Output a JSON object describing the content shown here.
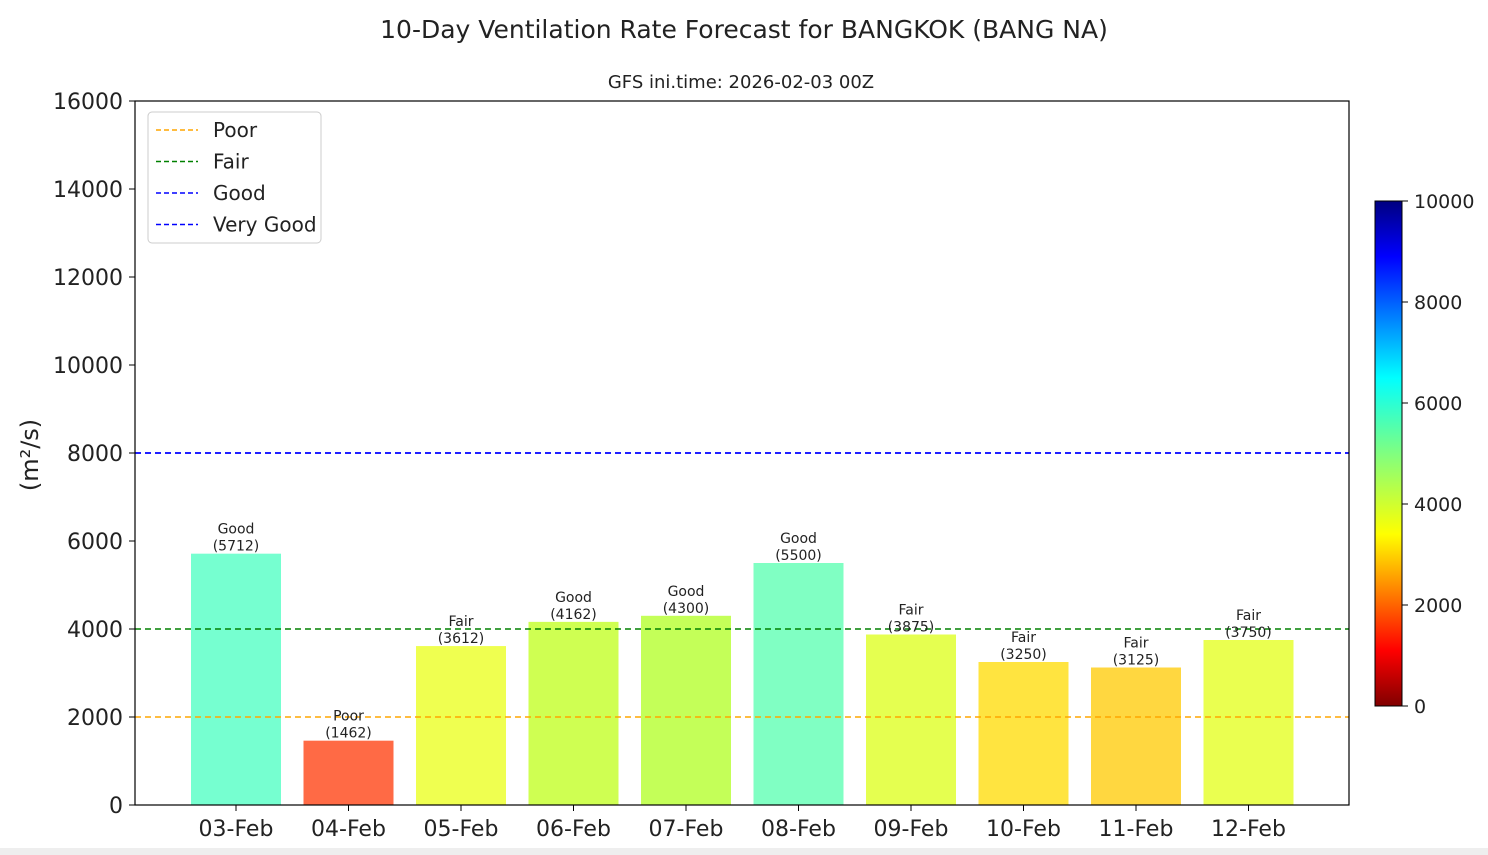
{
  "chart_data": {
    "type": "bar",
    "title": "10-Day Ventilation Rate Forecast for BANGKOK (BANG NA)",
    "subtitle": "GFS ini.time: 2026-02-03 00Z",
    "ylabel": "(m²/s)",
    "xlabel": "",
    "ylim": [
      0,
      16000
    ],
    "yticks": [
      "0",
      "2000",
      "4000",
      "6000",
      "8000",
      "10000",
      "12000",
      "14000",
      "16000"
    ],
    "categories": [
      "03-Feb",
      "04-Feb",
      "05-Feb",
      "06-Feb",
      "07-Feb",
      "08-Feb",
      "09-Feb",
      "10-Feb",
      "11-Feb",
      "12-Feb"
    ],
    "values": [
      5712,
      1462,
      3612,
      4162,
      4300,
      5500,
      3875,
      3250,
      3125,
      3750
    ],
    "bar_labels": [
      "Good",
      "Poor",
      "Fair",
      "Good",
      "Good",
      "Good",
      "Fair",
      "Fair",
      "Fair",
      "Fair"
    ],
    "value_labels": [
      "(5712)",
      "(1462)",
      "(3612)",
      "(4162)",
      "(4300)",
      "(5500)",
      "(3875)",
      "(3250)",
      "(3125)",
      "(3750)"
    ],
    "bar_colors": [
      "#76ffd0",
      "#ff6a45",
      "#efff50",
      "#cfff52",
      "#c4ff58",
      "#80ffc3",
      "#e5ff50",
      "#ffe440",
      "#ffd740",
      "#eaff50"
    ],
    "thresholds": [
      {
        "name": "Poor",
        "value": 2000,
        "color": "#ffa500"
      },
      {
        "name": "Fair",
        "value": 4000,
        "color": "#008000"
      },
      {
        "name": "Good",
        "value": 8000,
        "color": "#0000ff"
      },
      {
        "name": "Very Good",
        "value": 8000,
        "color": "#0000ff"
      }
    ],
    "legend_position": "upper-left",
    "grid": false,
    "colorbar": {
      "range": [
        0,
        10000
      ],
      "ticks": [
        "0",
        "2000",
        "4000",
        "6000",
        "8000",
        "10000"
      ],
      "colormap": "jet"
    }
  }
}
